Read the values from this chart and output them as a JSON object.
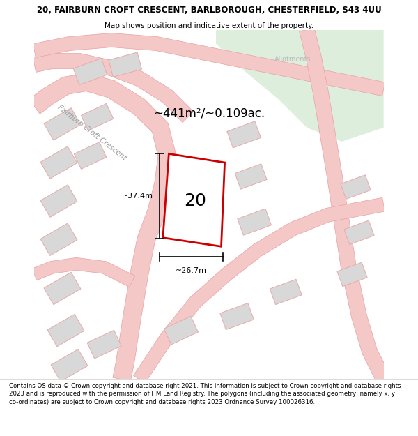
{
  "title_line1": "20, FAIRBURN CROFT CRESCENT, BARLBOROUGH, CHESTERFIELD, S43 4UU",
  "title_line2": "Map shows position and indicative extent of the property.",
  "footer_text": "Contains OS data © Crown copyright and database right 2021. This information is subject to Crown copyright and database rights 2023 and is reproduced with the permission of HM Land Registry. The polygons (including the associated geometry, namely x, y co-ordinates) are subject to Crown copyright and database rights 2023 Ordnance Survey 100026316.",
  "area_label": "~441m²/~0.109ac.",
  "number_label": "20",
  "width_label": "~26.7m",
  "height_label": "~37.4m",
  "street_label": "Fairburn Croft Crescent",
  "allotments_label": "Allotments",
  "map_bg": "#f2f2f2",
  "plot_color": "#cc0000",
  "road_fill": "#f5c8c8",
  "road_edge": "#e8a0a0",
  "green_fill": "#ddeedd",
  "building_fill": "#d8d8d8",
  "building_edge": "#e8aaaa",
  "title_fontsize": 8.5,
  "subtitle_fontsize": 7.5,
  "footer_fontsize": 6.2
}
